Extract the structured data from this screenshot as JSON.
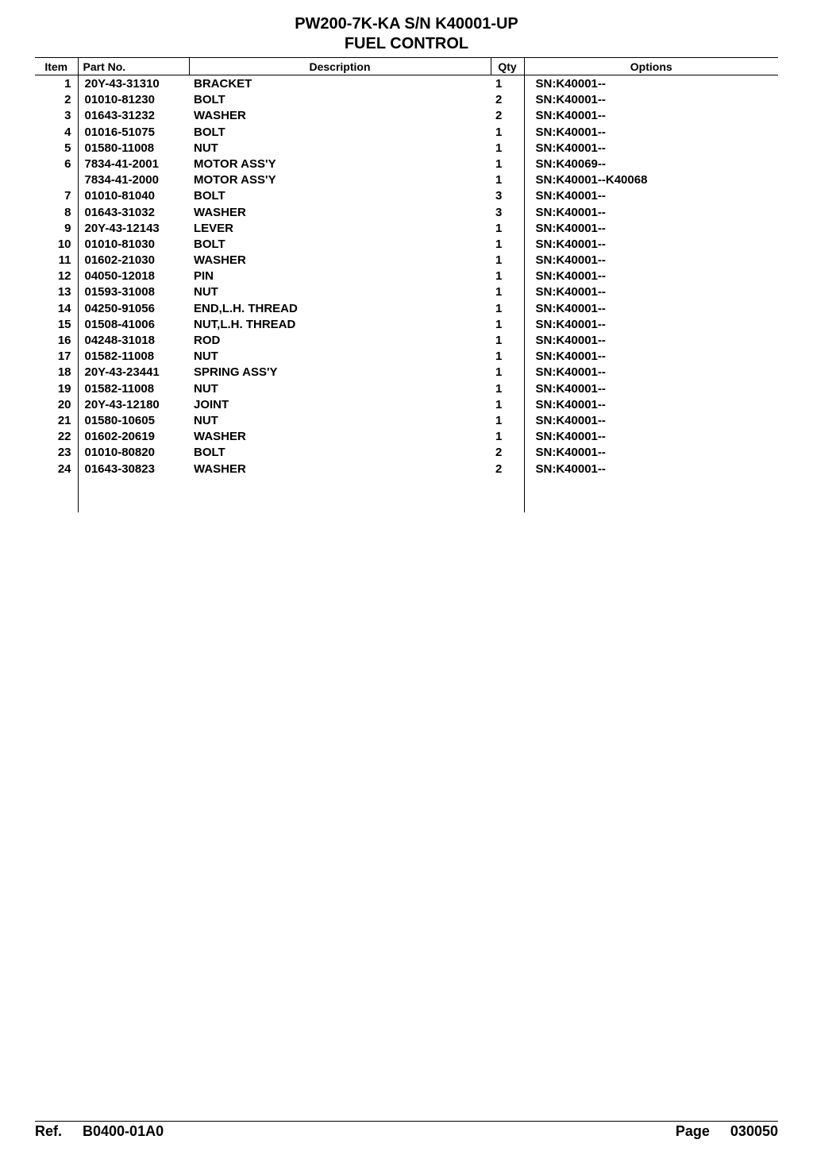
{
  "title": {
    "line1": "PW200-7K-KA S/N K40001-UP",
    "line2": "FUEL CONTROL"
  },
  "headers": {
    "item": "Item",
    "part": "Part No.",
    "description": "Description",
    "qty": "Qty",
    "options": "Options"
  },
  "rows": [
    {
      "item": "1",
      "part": "20Y-43-31310",
      "desc": "BRACKET",
      "qty": "1",
      "opt": "SN:K40001--"
    },
    {
      "item": "2",
      "part": "01010-81230",
      "desc": "BOLT",
      "qty": "2",
      "opt": "SN:K40001--"
    },
    {
      "item": "3",
      "part": "01643-31232",
      "desc": "WASHER",
      "qty": "2",
      "opt": "SN:K40001--"
    },
    {
      "item": "4",
      "part": "01016-51075",
      "desc": "BOLT",
      "qty": "1",
      "opt": "SN:K40001--"
    },
    {
      "item": "5",
      "part": "01580-11008",
      "desc": "NUT",
      "qty": "1",
      "opt": "SN:K40001--"
    },
    {
      "item": "6",
      "part": "7834-41-2001",
      "desc": "MOTOR ASS'Y",
      "qty": "1",
      "opt": "SN:K40069--"
    },
    {
      "item": "",
      "part": "7834-41-2000",
      "desc": "MOTOR ASS'Y",
      "qty": "1",
      "opt": "SN:K40001--K40068"
    },
    {
      "item": "7",
      "part": "01010-81040",
      "desc": "BOLT",
      "qty": "3",
      "opt": "SN:K40001--"
    },
    {
      "item": "8",
      "part": "01643-31032",
      "desc": "WASHER",
      "qty": "3",
      "opt": "SN:K40001--"
    },
    {
      "item": "9",
      "part": "20Y-43-12143",
      "desc": "LEVER",
      "qty": "1",
      "opt": "SN:K40001--"
    },
    {
      "item": "10",
      "part": "01010-81030",
      "desc": "BOLT",
      "qty": "1",
      "opt": "SN:K40001--"
    },
    {
      "item": "11",
      "part": "01602-21030",
      "desc": "WASHER",
      "qty": "1",
      "opt": "SN:K40001--"
    },
    {
      "item": "12",
      "part": "04050-12018",
      "desc": "PIN",
      "qty": "1",
      "opt": "SN:K40001--"
    },
    {
      "item": "13",
      "part": "01593-31008",
      "desc": "NUT",
      "qty": "1",
      "opt": "SN:K40001--"
    },
    {
      "item": "14",
      "part": "04250-91056",
      "desc": "END,L.H. THREAD",
      "qty": "1",
      "opt": "SN:K40001--"
    },
    {
      "item": "15",
      "part": "01508-41006",
      "desc": "NUT,L.H. THREAD",
      "qty": "1",
      "opt": "SN:K40001--"
    },
    {
      "item": "16",
      "part": "04248-31018",
      "desc": "ROD",
      "qty": "1",
      "opt": "SN:K40001--"
    },
    {
      "item": "17",
      "part": "01582-11008",
      "desc": "NUT",
      "qty": "1",
      "opt": "SN:K40001--"
    },
    {
      "item": "18",
      "part": "20Y-43-23441",
      "desc": "SPRING ASS'Y",
      "qty": "1",
      "opt": "SN:K40001--"
    },
    {
      "item": "19",
      "part": "01582-11008",
      "desc": "NUT",
      "qty": "1",
      "opt": "SN:K40001--"
    },
    {
      "item": "20",
      "part": "20Y-43-12180",
      "desc": "JOINT",
      "qty": "1",
      "opt": "SN:K40001--"
    },
    {
      "item": "21",
      "part": "01580-10605",
      "desc": "NUT",
      "qty": "1",
      "opt": "SN:K40001--"
    },
    {
      "item": "22",
      "part": "01602-20619",
      "desc": "WASHER",
      "qty": "1",
      "opt": "SN:K40001--"
    },
    {
      "item": "23",
      "part": "01010-80820",
      "desc": "BOLT",
      "qty": "2",
      "opt": "SN:K40001--"
    },
    {
      "item": "24",
      "part": "01643-30823",
      "desc": "WASHER",
      "qty": "2",
      "opt": "SN:K40001--"
    }
  ],
  "footer": {
    "ref_label": "Ref.",
    "ref_value": "B0400-01A0",
    "page_label": "Page",
    "page_value": "030050"
  },
  "layout": {
    "spacer_rows": 45,
    "colors": {
      "text": "#000000",
      "bg": "#ffffff",
      "rule": "#000000"
    }
  }
}
